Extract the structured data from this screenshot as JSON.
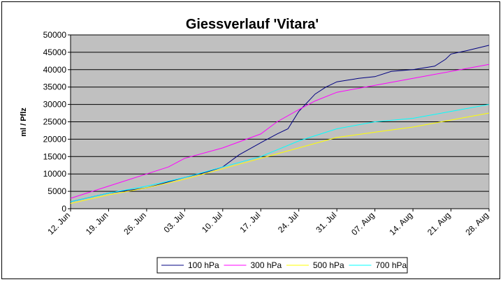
{
  "chart_data": {
    "type": "line",
    "title": "Giessverlauf 'Vitara'",
    "xlabel": "",
    "ylabel": "ml / Pflz",
    "ylim": [
      0,
      50000
    ],
    "yticks": [
      "0",
      "5000",
      "10000",
      "15000",
      "20000",
      "25000",
      "30000",
      "35000",
      "40000",
      "45000",
      "50000"
    ],
    "xlim_days": [
      0,
      77
    ],
    "xticks": [
      "12. Jun",
      "19. Jun",
      "26. Jun",
      "03. Jul",
      "10. Jul",
      "17. Jul",
      "24. Jul",
      "31. Jul",
      "07. Aug",
      "14. Aug",
      "21. Aug",
      "28. Aug"
    ],
    "grid": "horizontal",
    "plot_background": "#c0c0c0",
    "legend_position": "bottom",
    "series": [
      {
        "name": "100 hPa",
        "color": "#000080",
        "x": [
          "12. Jun",
          "19. Jun",
          "26. Jun",
          "03. Jul",
          "07. Jul",
          "10. Jul",
          "13. Jul",
          "17. Jul",
          "20. Jul",
          "22. Jul",
          "24. Jul",
          "27. Jul",
          "29. Jul",
          "31. Jul",
          "04. Aug",
          "07. Aug",
          "10. Aug",
          "14. Aug",
          "18. Aug",
          "20. Aug",
          "21. Aug",
          "24. Aug",
          "28. Aug"
        ],
        "values": [
          2000,
          4500,
          6000,
          9000,
          10500,
          12000,
          15500,
          19000,
          21500,
          23000,
          28000,
          33000,
          35000,
          36500,
          37500,
          38000,
          39500,
          40000,
          41000,
          43000,
          44500,
          45500,
          47000
        ]
      },
      {
        "name": "300 hPa",
        "color": "#ff00ff",
        "x": [
          "12. Jun",
          "19. Jun",
          "26. Jun",
          "30. Jun",
          "03. Jul",
          "10. Jul",
          "17. Jul",
          "20. Jul",
          "24. Jul",
          "27. Jul",
          "31. Jul",
          "07. Aug",
          "14. Aug",
          "21. Aug",
          "28. Aug"
        ],
        "values": [
          3000,
          6500,
          10000,
          12000,
          14500,
          17500,
          21500,
          25000,
          28500,
          31000,
          33500,
          35500,
          37500,
          39500,
          41500
        ]
      },
      {
        "name": "500 hPa",
        "color": "#ffff00",
        "x": [
          "12. Jun",
          "19. Jun",
          "26. Jun",
          "03. Jul",
          "10. Jul",
          "17. Jul",
          "24. Jul",
          "31. Jul",
          "07. Aug",
          "14. Aug",
          "21. Aug",
          "28. Aug"
        ],
        "values": [
          1500,
          4000,
          6000,
          8500,
          11500,
          14500,
          17500,
          20500,
          22000,
          23500,
          25500,
          27500
        ]
      },
      {
        "name": "700 hPa",
        "color": "#00ffff",
        "x": [
          "12. Jun",
          "19. Jun",
          "26. Jun",
          "03. Jul",
          "10. Jul",
          "17. Jul",
          "24. Jul",
          "31. Jul",
          "07. Aug",
          "14. Aug",
          "21. Aug",
          "28. Aug"
        ],
        "values": [
          2000,
          4500,
          6500,
          9000,
          12000,
          15000,
          19500,
          23000,
          25000,
          26000,
          28000,
          30000
        ]
      }
    ]
  }
}
